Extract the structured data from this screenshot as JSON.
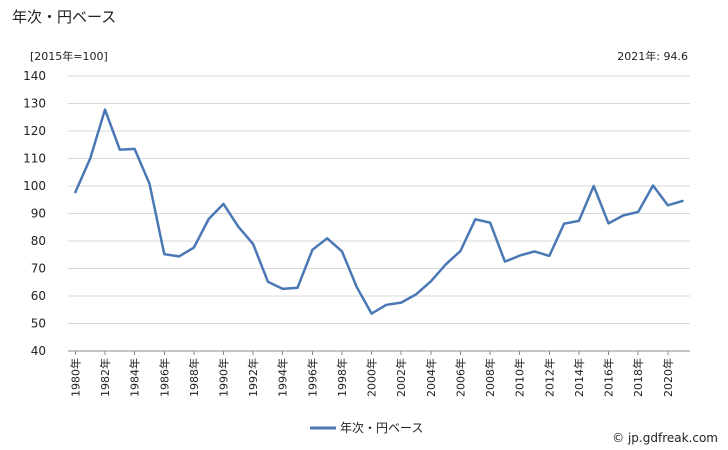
{
  "chart_data": {
    "type": "line",
    "title": "年次・円ベース",
    "unit_label": "[2015年=100]",
    "annotation": "2021年: 94.6",
    "ylim": [
      40,
      140
    ],
    "y_ticks": [
      40,
      50,
      60,
      70,
      80,
      90,
      100,
      110,
      120,
      130,
      140
    ],
    "x": [
      1980,
      1981,
      1982,
      1983,
      1984,
      1985,
      1986,
      1987,
      1988,
      1989,
      1990,
      1991,
      1992,
      1993,
      1994,
      1995,
      1996,
      1997,
      1998,
      1999,
      2000,
      2001,
      2002,
      2003,
      2004,
      2005,
      2006,
      2007,
      2008,
      2009,
      2010,
      2011,
      2012,
      2013,
      2014,
      2015,
      2016,
      2017,
      2018,
      2019,
      2020,
      2021
    ],
    "x_tick_labels": [
      "1980年",
      "1982年",
      "1984年",
      "1986年",
      "1988年",
      "1990年",
      "1992年",
      "1994年",
      "1996年",
      "1998年",
      "2000年",
      "2002年",
      "2004年",
      "2006年",
      "2008年",
      "2010年",
      "2012年",
      "2014年",
      "2016年",
      "2018年",
      "2020年"
    ],
    "series": [
      {
        "name": "年次・円ベース",
        "color": "#4a78b5",
        "values": [
          97.8,
          110.0,
          127.8,
          113.2,
          113.5,
          100.8,
          75.2,
          74.4,
          77.6,
          88.0,
          93.5,
          85.2,
          78.9,
          65.2,
          62.6,
          63.0,
          76.8,
          81.0,
          76.2,
          63.2,
          53.6,
          56.8,
          57.6,
          60.6,
          65.3,
          71.4,
          76.4,
          87.9,
          86.7,
          72.5,
          74.7,
          76.2,
          74.6,
          86.3,
          87.3,
          100.0,
          86.4,
          89.3,
          90.6,
          100.2,
          93.0,
          94.6
        ]
      }
    ],
    "grid": true,
    "legend_position": "bottom-center"
  },
  "credit": "© jp.gdfreak.com"
}
